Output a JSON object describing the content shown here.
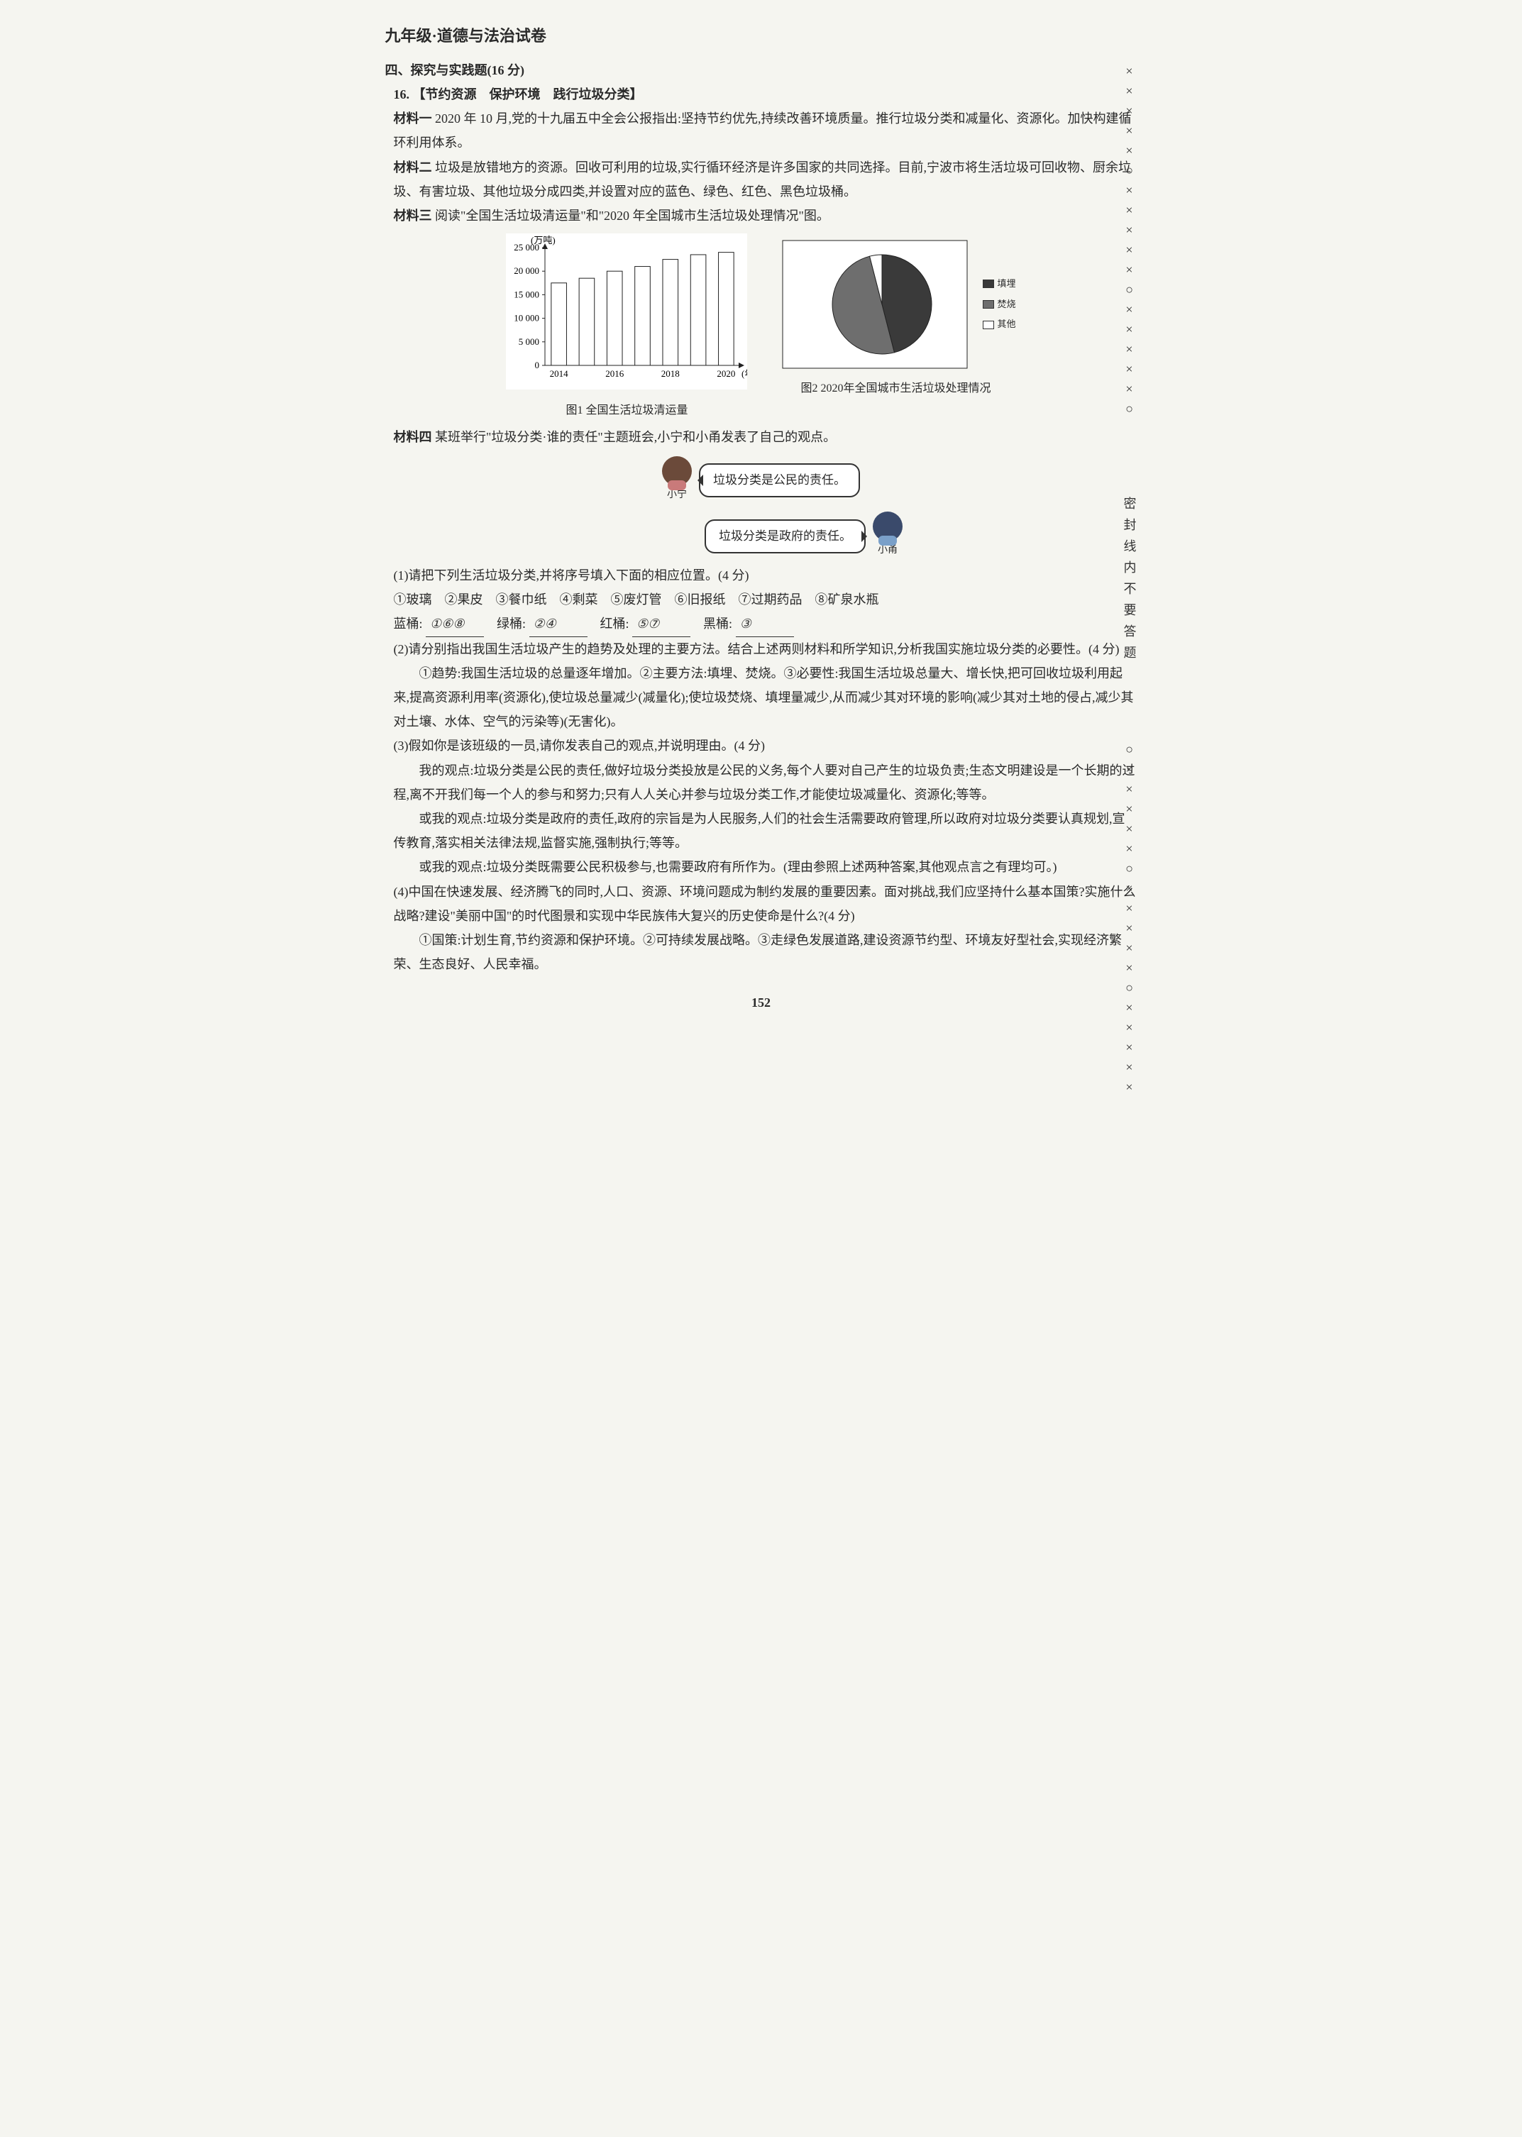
{
  "header": "九年级·道德与法治试卷",
  "section4": {
    "title": "四、探究与实践题(16 分)",
    "q16": {
      "num": "16.",
      "topic": "【节约资源　保护环境　践行垃圾分类】",
      "material1_label": "材料一",
      "material1": "2020 年 10 月,党的十九届五中全会公报指出:坚持节约优先,持续改善环境质量。推行垃圾分类和减量化、资源化。加快构建循环利用体系。",
      "material2_label": "材料二",
      "material2": "垃圾是放错地方的资源。回收可利用的垃圾,实行循环经济是许多国家的共同选择。目前,宁波市将生活垃圾可回收物、厨余垃圾、有害垃圾、其他垃圾分成四类,并设置对应的蓝色、绿色、红色、黑色垃圾桶。",
      "material3_label": "材料三",
      "material3": "阅读\"全国生活垃圾清运量\"和\"2020 年全国城市生活垃圾处理情况\"图。",
      "chart1": {
        "type": "bar",
        "y_unit": "(万吨)",
        "categories": [
          "2014",
          "",
          "2016",
          "",
          "2018",
          "",
          "2020"
        ],
        "values": [
          17500,
          18500,
          20000,
          21000,
          22500,
          23500,
          24000
        ],
        "ylim": [
          0,
          25000
        ],
        "ytick_step": 5000,
        "bar_color": "#ffffff",
        "bar_border": "#222222",
        "axis_color": "#222222",
        "background_color": "#ffffff",
        "xlabel_suffix": "(年)",
        "caption": "图1 全国生活垃圾清运量",
        "bar_width": 0.55,
        "fontsize": 13
      },
      "chart2": {
        "type": "pie",
        "values": [
          46,
          50,
          4
        ],
        "labels": [
          "填埋",
          "焚烧",
          "其他"
        ],
        "colors": [
          "#3a3a3a",
          "#6e6e6e",
          "#ffffff"
        ],
        "border_color": "#222222",
        "background_color": "#ffffff",
        "caption": "图2 2020年全国城市生活垃圾处理情况",
        "fontsize": 13
      },
      "material4_label": "材料四",
      "material4": "某班举行\"垃圾分类·谁的责任\"主题班会,小宁和小甬发表了自己的观点。",
      "speech": {
        "ning_name": "小宁",
        "ning_text": "垃圾分类是公民的责任。",
        "yong_name": "小甬",
        "yong_text": "垃圾分类是政府的责任。"
      },
      "sub1": {
        "prompt": "(1)请把下列生活垃圾分类,并将序号填入下面的相应位置。(4 分)",
        "items_line": "①玻璃　②果皮　③餐巾纸　④剩菜　⑤废灯管　⑥旧报纸　⑦过期药品　⑧矿泉水瓶",
        "row_labels": {
          "blue": "蓝桶:",
          "green": "绿桶:",
          "red": "红桶:",
          "black": "黑桶:"
        },
        "answers": {
          "blue": "①⑥⑧",
          "green": "②④",
          "red": "⑤⑦",
          "black": "③"
        }
      },
      "sub2": {
        "prompt": "(2)请分别指出我国生活垃圾产生的趋势及处理的主要方法。结合上述两则材料和所学知识,分析我国实施垃圾分类的必要性。(4 分)",
        "answer": "①趋势:我国生活垃圾的总量逐年增加。②主要方法:填埋、焚烧。③必要性:我国生活垃圾总量大、增长快,把可回收垃圾利用起来,提高资源利用率(资源化),使垃圾总量减少(减量化);使垃圾焚烧、填埋量减少,从而减少其对环境的影响(减少其对土地的侵占,减少其对土壤、水体、空气的污染等)(无害化)。"
      },
      "sub3": {
        "prompt": "(3)假如你是该班级的一员,请你发表自己的观点,并说明理由。(4 分)",
        "answer_a": "我的观点:垃圾分类是公民的责任,做好垃圾分类投放是公民的义务,每个人要对自己产生的垃圾负责;生态文明建设是一个长期的过程,离不开我们每一个人的参与和努力;只有人人关心并参与垃圾分类工作,才能使垃圾减量化、资源化;等等。",
        "answer_b": "或我的观点:垃圾分类是政府的责任,政府的宗旨是为人民服务,人们的社会生活需要政府管理,所以政府对垃圾分类要认真规划,宣传教育,落实相关法律法规,监督实施,强制执行;等等。",
        "answer_c": "或我的观点:垃圾分类既需要公民积极参与,也需要政府有所作为。(理由参照上述两种答案,其他观点言之有理均可。)"
      },
      "sub4": {
        "prompt": "(4)中国在快速发展、经济腾飞的同时,人口、资源、环境问题成为制约发展的重要因素。面对挑战,我们应坚持什么基本国策?实施什么战略?建设\"美丽中国\"的时代图景和实现中华民族伟大复兴的历史使命是什么?(4 分)",
        "answer": "①国策:计划生育,节约资源和保护环境。②可持续发展战略。③走绿色发展道路,建设资源节约型、环境友好型社会,实现经济繁荣、生态良好、人民幸福。"
      }
    }
  },
  "side": {
    "marks_top": "×××××○×××××○×××××○",
    "text": "密封线内不要答题",
    "marks_bottom": "○×××××○×××××○×××××"
  },
  "page_number": "152"
}
